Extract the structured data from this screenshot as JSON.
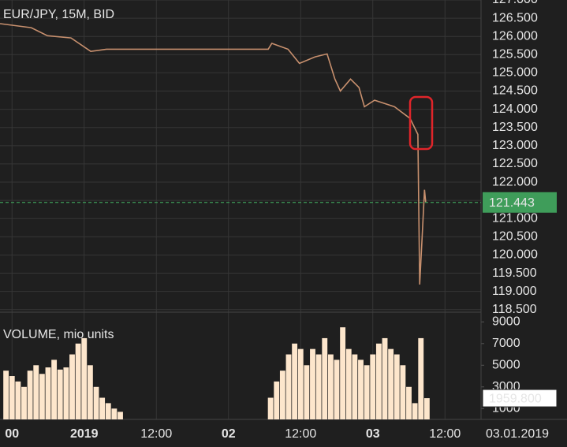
{
  "chart_data": [
    {
      "type": "line",
      "title": "EUR/JPY, 15M, BID",
      "x": [
        -14,
        -8.8,
        -6.1,
        -2.2,
        1.1,
        3.7,
        7,
        30.6,
        31.2,
        33.9,
        35.8,
        38.4,
        40.4,
        41.7,
        42.6,
        44.3,
        45.7,
        46.6,
        48.3,
        51.6,
        54.2,
        55.5,
        55.8,
        56.2,
        56.6,
        56.8
      ],
      "values": [
        126.35,
        126.24,
        126.02,
        125.96,
        125.59,
        125.65,
        125.65,
        125.65,
        125.81,
        125.65,
        125.26,
        125.44,
        125.52,
        124.83,
        124.5,
        124.83,
        124.6,
        124.07,
        124.25,
        124.07,
        123.75,
        123.31,
        119.19,
        120.49,
        121.79,
        121.44
      ],
      "color": "#c8906e",
      "xlim": [
        -14,
        66
      ],
      "ylim": [
        118.43,
        127.0
      ],
      "yticks": [
        {
          "value": 118.5,
          "label": "118.500"
        },
        {
          "value": 119,
          "label": "119.000"
        },
        {
          "value": 119.5,
          "label": "119.500"
        },
        {
          "value": 120,
          "label": "120.000"
        },
        {
          "value": 120.5,
          "label": "120.500"
        },
        {
          "value": 121,
          "label": "121.000"
        },
        {
          "value": 121.5,
          "label": "121.500"
        },
        {
          "value": 122,
          "label": "122.000"
        },
        {
          "value": 122.5,
          "label": "122.500"
        },
        {
          "value": 123,
          "label": "123.000"
        },
        {
          "value": 123.5,
          "label": "123.500"
        },
        {
          "value": 124,
          "label": "124.000"
        },
        {
          "value": 124.5,
          "label": "124.500"
        },
        {
          "value": 125,
          "label": "125.000"
        },
        {
          "value": 125.5,
          "label": "125.500"
        },
        {
          "value": 126,
          "label": "126.000"
        },
        {
          "value": 126.5,
          "label": "126.500"
        },
        {
          "value": 127,
          "label": "127.000"
        }
      ],
      "grid": true,
      "last_price": 121.443,
      "last_price_color": "#3f9d5a"
    },
    {
      "type": "bar",
      "title": "VOLUME, mio units",
      "x": [
        -13,
        -12,
        -11,
        -10,
        -9,
        -8,
        -7,
        -6,
        -5,
        -4,
        -3,
        -2,
        -1,
        0,
        1,
        2,
        3,
        4,
        5,
        6,
        31,
        32,
        33,
        34,
        35,
        36,
        37,
        38,
        39,
        40,
        41,
        42,
        43,
        44,
        45,
        46,
        47,
        48,
        49,
        50,
        51,
        52,
        53,
        54,
        55,
        56,
        57
      ],
      "values": [
        4500,
        4000,
        3500,
        3000,
        4500,
        5000,
        4200,
        4800,
        5500,
        4600,
        4800,
        6000,
        7000,
        7500,
        5000,
        3000,
        2000,
        1500,
        1000,
        700,
        2000,
        3500,
        4500,
        6000,
        7000,
        6500,
        5000,
        6500,
        6000,
        7500,
        6000,
        5500,
        8500,
        6500,
        6000,
        5500,
        5000,
        6000,
        7000,
        7500,
        6500,
        6000,
        5000,
        3000,
        1500,
        7500,
        1959.8
      ],
      "color": "#fde6cc",
      "xlim": [
        -14,
        66
      ],
      "ylim": [
        0,
        9750
      ],
      "yticks": [
        1000,
        3000,
        5000,
        7000,
        9000
      ],
      "xticks": [
        {
          "value": -12,
          "label": "00"
        },
        {
          "value": 0,
          "label": "2019"
        },
        {
          "value": 12,
          "label": "12:00"
        },
        {
          "value": 24,
          "label": "02"
        },
        {
          "value": 36,
          "label": "12:00"
        },
        {
          "value": 48,
          "label": "03"
        },
        {
          "value": 60,
          "label": "12:00"
        }
      ],
      "last_value": {
        "value": 1959.8,
        "label": "1959.800"
      },
      "date_label": "03.01.2019"
    }
  ]
}
